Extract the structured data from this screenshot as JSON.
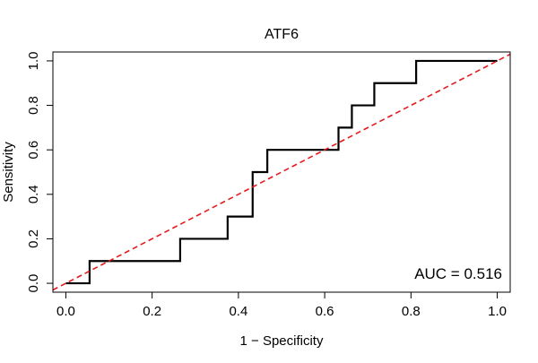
{
  "chart_data": {
    "type": "line",
    "title": "ATF6",
    "xlabel": "1 − Specificity",
    "ylabel": "Sensitivity",
    "xlim": [
      -0.03,
      1.03
    ],
    "ylim": [
      -0.04,
      1.04
    ],
    "xticks": [
      0.0,
      0.2,
      0.4,
      0.6,
      0.8,
      1.0
    ],
    "yticks": [
      0.0,
      0.2,
      0.4,
      0.6,
      0.8,
      1.0
    ],
    "xtick_labels": [
      "0.0",
      "0.2",
      "0.4",
      "0.6",
      "0.8",
      "1.0"
    ],
    "ytick_labels": [
      "0.0",
      "0.2",
      "0.4",
      "0.6",
      "0.8",
      "1.0"
    ],
    "grid": false,
    "annotation": "AUC = 0.516",
    "series": [
      {
        "style": "solid",
        "color": "#000000",
        "x": [
          0.0,
          0.055,
          0.055,
          0.265,
          0.265,
          0.375,
          0.375,
          0.433,
          0.433,
          0.467,
          0.467,
          0.632,
          0.632,
          0.663,
          0.663,
          0.715,
          0.715,
          0.812,
          0.812,
          1.0
        ],
        "y": [
          0.0,
          0.0,
          0.1,
          0.1,
          0.2,
          0.2,
          0.3,
          0.3,
          0.5,
          0.5,
          0.6,
          0.6,
          0.7,
          0.7,
          0.8,
          0.8,
          0.9,
          0.9,
          1.0,
          1.0
        ]
      },
      {
        "style": "dashed",
        "color": "#e41a1c",
        "x": [
          -0.03,
          1.03
        ],
        "y": [
          -0.03,
          1.03
        ]
      }
    ]
  }
}
